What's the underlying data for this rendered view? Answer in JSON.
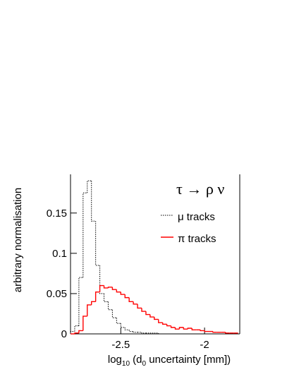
{
  "chart_data": {
    "type": "histogram",
    "legend_title": "τ → ρ ν",
    "x_label": [
      "log",
      "10",
      " (d",
      "0",
      " uncertainty [mm])"
    ],
    "y_label": "arbitrary normalisation",
    "bins": [
      -2.8,
      -2.775,
      -2.75,
      -2.725,
      -2.7,
      -2.675,
      -2.65,
      -2.625,
      -2.6,
      -2.575,
      -2.55,
      -2.525,
      -2.5,
      -2.475,
      -2.45,
      -2.425,
      -2.4,
      -2.375,
      -2.35,
      -2.325,
      -2.3,
      -2.275,
      -2.25,
      -2.225,
      -2.2,
      -2.175,
      -2.15,
      -2.125,
      -2.1,
      -2.075,
      -2.05,
      -2.025,
      -2,
      -1.975,
      -1.95,
      -1.925,
      -1.9,
      -1.875,
      -1.85,
      -1.825,
      -1.8
    ],
    "series": [
      {
        "name": "μ tracks",
        "color": "#000000",
        "line_style": "dotted",
        "values": [
          0.003,
          0.01,
          0.07,
          0.175,
          0.19,
          0.14,
          0.085,
          0.05,
          0.04,
          0.03,
          0.02,
          0.013,
          0.008,
          0.005,
          0.003,
          0.002,
          0.002,
          0.001,
          0.001,
          0.001,
          0.001,
          0,
          0,
          0,
          0,
          0,
          0,
          0,
          0,
          0,
          0,
          0,
          0,
          0,
          0,
          0,
          0,
          0,
          0,
          0
        ]
      },
      {
        "name": "π tracks",
        "color": "#ff0000",
        "line_style": "solid",
        "values": [
          0,
          0.001,
          0.004,
          0.022,
          0.036,
          0.04,
          0.052,
          0.06,
          0.057,
          0.058,
          0.055,
          0.052,
          0.049,
          0.045,
          0.04,
          0.037,
          0.032,
          0.028,
          0.024,
          0.021,
          0.018,
          0.014,
          0.012,
          0.01,
          0.008,
          0.006,
          0.008,
          0.006,
          0.007,
          0.005,
          0.005,
          0.004,
          0.003,
          0.003,
          0.002,
          0.002,
          0.002,
          0.001,
          0.001,
          0.001
        ]
      }
    ],
    "xlim": [
      -2.8,
      -1.79
    ],
    "ylim": [
      0,
      0.198
    ],
    "xticks": [
      -2.5,
      -2
    ],
    "yticks": [
      0,
      0.05,
      0.1,
      0.15
    ]
  }
}
